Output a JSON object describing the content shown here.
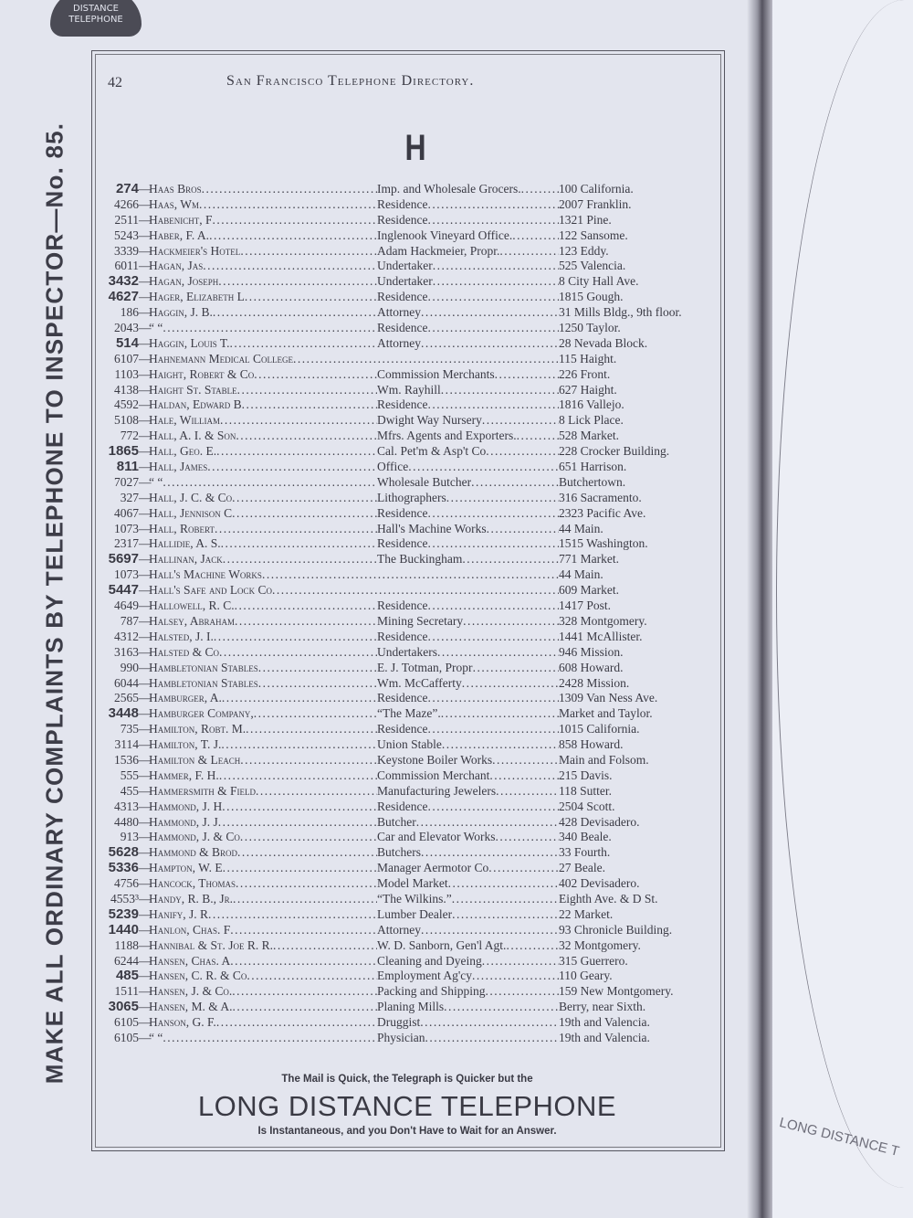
{
  "logo": {
    "line1": "DISTANCE",
    "line2": "TELEPHONE"
  },
  "side_notice": "MAKE ALL ORDINARY COMPLAINTS BY TELEPHONE TO INSPECTOR—No. 85.",
  "header": {
    "page_number": "42",
    "title": "San Francisco Telephone Directory."
  },
  "section_letter": "H",
  "entries": [
    {
      "number": "274",
      "bold": true,
      "name": "Haas Bros",
      "business": "Imp. and Wholesale Grocers.",
      "address": "100 California."
    },
    {
      "number": "4266",
      "name": "Haas, Wm",
      "business": "Residence",
      "address": "2007 Franklin."
    },
    {
      "number": "2511",
      "name": "Habenicht, F",
      "business": "Residence",
      "address": "1321 Pine."
    },
    {
      "number": "5243",
      "name": "Haber, F. A.",
      "business": "Inglenook Vineyard Office.",
      "address": "122 Sansome."
    },
    {
      "number": "3339",
      "name": "Hackmeier's Hotel",
      "business": "Adam Hackmeier, Propr.",
      "address": "123 Eddy."
    },
    {
      "number": "6011",
      "name": "Hagan, Jas",
      "business": "Undertaker",
      "address": "525 Valencia."
    },
    {
      "number": "3432",
      "bold": true,
      "name": "Hagan, Joseph",
      "business": "Undertaker",
      "address": "8 City Hall Ave."
    },
    {
      "number": "4627",
      "bold": true,
      "name": "Hager, Elizabeth L",
      "business": "Residence",
      "address": "1815 Gough."
    },
    {
      "number": "186",
      "name": "Haggin, J. B.",
      "business": "Attorney",
      "address": "31 Mills Bldg., 9th floor."
    },
    {
      "number": "2043",
      "name": "“      “",
      "business": "Residence",
      "address": "1250 Taylor."
    },
    {
      "number": "514",
      "bold": true,
      "name": "Haggin, Louis T.",
      "business": "Attorney",
      "address": "28 Nevada Block."
    },
    {
      "number": "6107",
      "name": "Hahnemann Medical College",
      "business": "",
      "address": "115 Haight."
    },
    {
      "number": "1103",
      "name": "Haight, Robert & Co",
      "business": "Commission Merchants",
      "address": "226 Front."
    },
    {
      "number": "4138",
      "name": "Haight St. Stable",
      "business": "Wm. Rayhill",
      "address": "627 Haight."
    },
    {
      "number": "4592",
      "name": "Haldan, Edward B",
      "business": "Residence",
      "address": "1816 Vallejo."
    },
    {
      "number": "5108",
      "name": "Hale, William",
      "business": "Dwight Way Nursery",
      "address": "8 Lick Place."
    },
    {
      "number": "772",
      "name": "Hall, A. I. & Son",
      "business": "Mfrs. Agents and Exporters.",
      "address": "528 Market."
    },
    {
      "number": "1865",
      "bold": true,
      "name": "Hall, Geo. E.",
      "business": "Cal. Pet'm & Asp't Co",
      "address": "228 Crocker Building."
    },
    {
      "number": "811",
      "bold": true,
      "name": "Hall, James",
      "business": "Office",
      "address": "651 Harrison."
    },
    {
      "number": "7027",
      "name": "“      “",
      "business": "Wholesale Butcher",
      "address": "Butchertown."
    },
    {
      "number": "327",
      "name": "Hall, J. C. & Co",
      "business": "Lithographers",
      "address": "316 Sacramento."
    },
    {
      "number": "4067",
      "name": "Hall, Jennison C",
      "business": "Residence",
      "address": "2323 Pacific Ave."
    },
    {
      "number": "1073",
      "name": "Hall, Robert",
      "business": "Hall's Machine Works",
      "address": "44 Main."
    },
    {
      "number": "2317",
      "name": "Hallidie, A. S.",
      "business": "Residence",
      "address": "1515 Washington."
    },
    {
      "number": "5697",
      "bold": true,
      "name": "Hallinan, Jack",
      "business": "The Buckingham",
      "address": "771 Market."
    },
    {
      "number": "1073",
      "name": "Hall's Machine Works",
      "business": "",
      "address": "44 Main."
    },
    {
      "number": "5447",
      "bold": true,
      "name": "Hall's Safe and Lock Co",
      "business": "",
      "address": "609 Market."
    },
    {
      "number": "4649",
      "name": "Hallowell, R. C.",
      "business": "Residence",
      "address": "1417 Post."
    },
    {
      "number": "787",
      "name": "Halsey, Abraham",
      "business": "Mining Secretary",
      "address": "328 Montgomery."
    },
    {
      "number": "4312",
      "name": "Halsted, J. I.",
      "business": "Residence",
      "address": "1441 McAllister."
    },
    {
      "number": "3163",
      "name": "Halsted & Co",
      "business": "Undertakers",
      "address": "946 Mission."
    },
    {
      "number": "990",
      "name": "Hambletonian Stables",
      "business": "E. J. Totman, Propr",
      "address": "608 Howard."
    },
    {
      "number": "6044",
      "name": "Hambletonian Stables",
      "business": "Wm. McCafferty",
      "address": "2428 Mission."
    },
    {
      "number": "2565",
      "name": "Hamburger, A.",
      "business": "Residence",
      "address": "1309 Van Ness Ave."
    },
    {
      "number": "3448",
      "bold": true,
      "name": "Hamburger Company,",
      "business": "“The Maze”.",
      "address": "Market and Taylor."
    },
    {
      "number": "735",
      "name": "Hamilton, Robt. M.",
      "business": "Residence",
      "address": "1015 California."
    },
    {
      "number": "3114",
      "name": "Hamilton, T. J.",
      "business": "Union Stable",
      "address": "858 Howard."
    },
    {
      "number": "1536",
      "name": "Hamilton & Leach",
      "business": "Keystone Boiler Works",
      "address": "Main and Folsom."
    },
    {
      "number": "555",
      "name": "Hammer, F. H.",
      "business": "Commission Merchant",
      "address": "215 Davis."
    },
    {
      "number": "455",
      "name": "Hammersmith & Field",
      "business": "Manufacturing Jewelers",
      "address": "118 Sutter."
    },
    {
      "number": "4313",
      "name": "Hammond, J. H",
      "business": "Residence",
      "address": "2504 Scott."
    },
    {
      "number": "4480",
      "name": "Hammond, J. J",
      "business": "Butcher",
      "address": "428 Devisadero."
    },
    {
      "number": "913",
      "name": "Hammond, J. & Co",
      "business": "Car and Elevator Works",
      "address": "340 Beale."
    },
    {
      "number": "5628",
      "bold": true,
      "name": "Hammond & Brod",
      "business": "Butchers",
      "address": "33 Fourth."
    },
    {
      "number": "5336",
      "bold": true,
      "name": "Hampton, W. E",
      "business": "Manager Aermotor Co",
      "address": "27 Beale."
    },
    {
      "number": "4756",
      "name": "Hancock, Thomas",
      "business": "Model Market",
      "address": "402 Devisadero."
    },
    {
      "number": "4553³",
      "name": "Handy, R. B., Jr.",
      "business": "“The Wilkins.”",
      "address": "Eighth Ave. & D St."
    },
    {
      "number": "5239",
      "bold": true,
      "name": "Hanify, J. R",
      "business": "Lumber Dealer",
      "address": "22 Market."
    },
    {
      "number": "1440",
      "bold": true,
      "name": "Hanlon, Chas. F",
      "business": "Attorney",
      "address": "93 Chronicle Building."
    },
    {
      "number": "1188",
      "name": "Hannibal & St. Joe R. R.",
      "business": "W. D. Sanborn, Gen'l Agt.",
      "address": "32 Montgomery."
    },
    {
      "number": "6244",
      "name": "Hansen, Chas. A",
      "business": "Cleaning and Dyeing",
      "address": "315 Guerrero."
    },
    {
      "number": "485",
      "bold": true,
      "name": "Hansen, C. R. & Co",
      "business": "Employment Ag'cy",
      "address": "110 Geary."
    },
    {
      "number": "1511",
      "name": "Hansen, J. & Co.",
      "business": "Packing and Shipping",
      "address": "159 New Montgomery."
    },
    {
      "number": "3065",
      "bold": true,
      "name": "Hansen, M. & A.",
      "business": "Planing Mills",
      "address": "Berry, near Sixth."
    },
    {
      "number": "6105",
      "name": "Hanson, G. F.",
      "business": "Druggist",
      "address": "19th and Valencia."
    },
    {
      "number": "6105",
      "name": "“      “",
      "business": "Physician",
      "address": "19th and Valencia."
    }
  ],
  "footer": {
    "line1": "The Mail is Quick, the Telegraph is Quicker but the",
    "line2": "LONG DISTANCE TELEPHONE",
    "line3": "Is Instantaneous, and you Don't Have to Wait for an Answer."
  },
  "next_page_fragment": "LONG DISTANCE T"
}
